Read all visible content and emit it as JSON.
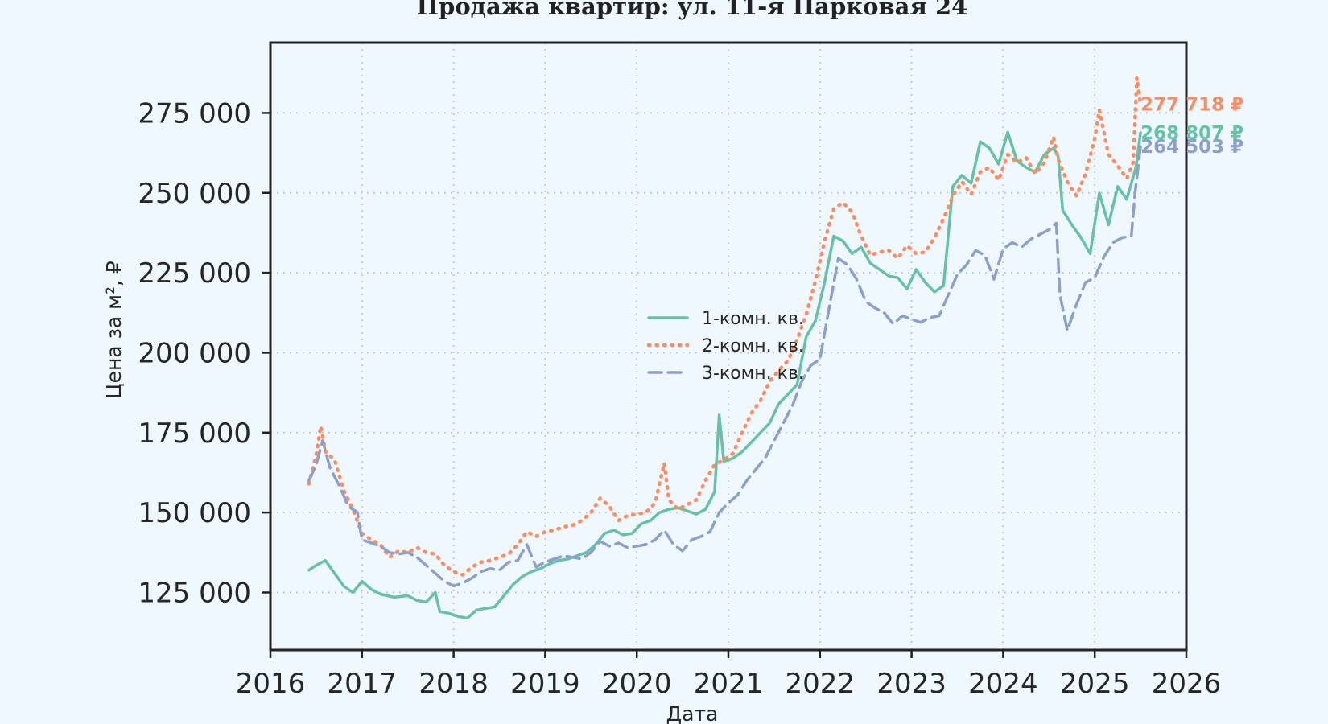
{
  "chart_data": {
    "type": "line",
    "title": "Продажа квартир: ул. 11-я Парковая 24",
    "xlabel": "Дата",
    "ylabel": "Цена за м², ₽",
    "xlim": [
      2016.0,
      2026.0
    ],
    "ylim": [
      107000,
      297000
    ],
    "x_ticks": [
      2016,
      2017,
      2018,
      2019,
      2020,
      2021,
      2022,
      2023,
      2024,
      2025,
      2026
    ],
    "x_tick_labels": [
      "2016",
      "2017",
      "2018",
      "2019",
      "2020",
      "2021",
      "2022",
      "2023",
      "2024",
      "2025",
      "2026"
    ],
    "y_ticks": [
      125000,
      150000,
      175000,
      200000,
      225000,
      250000,
      275000
    ],
    "y_tick_labels": [
      "125 000",
      "150 000",
      "175 000",
      "200 000",
      "225 000",
      "250 000",
      "275 000"
    ],
    "grid": true,
    "legend_position": "center",
    "series": [
      {
        "name": "1-комн. кв.",
        "color": "#66c2a5",
        "style": "solid",
        "end_label": "268 807 ₽",
        "points": [
          [
            2016.42,
            132000
          ],
          [
            2016.5,
            133500
          ],
          [
            2016.6,
            135000
          ],
          [
            2016.7,
            131000
          ],
          [
            2016.8,
            127000
          ],
          [
            2016.9,
            125000
          ],
          [
            2017.0,
            128500
          ],
          [
            2017.1,
            126000
          ],
          [
            2017.2,
            124500
          ],
          [
            2017.35,
            123500
          ],
          [
            2017.5,
            124000
          ],
          [
            2017.6,
            122500
          ],
          [
            2017.7,
            122000
          ],
          [
            2017.8,
            125000
          ],
          [
            2017.85,
            119000
          ],
          [
            2017.95,
            118500
          ],
          [
            2018.05,
            117500
          ],
          [
            2018.15,
            117000
          ],
          [
            2018.25,
            119500
          ],
          [
            2018.35,
            120000
          ],
          [
            2018.45,
            120500
          ],
          [
            2018.55,
            124000
          ],
          [
            2018.65,
            127500
          ],
          [
            2018.75,
            130000
          ],
          [
            2018.85,
            131500
          ],
          [
            2018.95,
            132500
          ],
          [
            2019.05,
            134000
          ],
          [
            2019.15,
            135000
          ],
          [
            2019.25,
            135500
          ],
          [
            2019.35,
            136500
          ],
          [
            2019.45,
            137500
          ],
          [
            2019.55,
            140000
          ],
          [
            2019.65,
            143500
          ],
          [
            2019.75,
            144500
          ],
          [
            2019.85,
            143000
          ],
          [
            2019.95,
            143500
          ],
          [
            2020.05,
            146500
          ],
          [
            2020.15,
            147500
          ],
          [
            2020.25,
            150000
          ],
          [
            2020.35,
            151000
          ],
          [
            2020.45,
            151500
          ],
          [
            2020.55,
            150500
          ],
          [
            2020.65,
            149500
          ],
          [
            2020.75,
            151000
          ],
          [
            2020.85,
            156500
          ],
          [
            2020.9,
            180500
          ],
          [
            2020.95,
            166000
          ],
          [
            2021.05,
            167000
          ],
          [
            2021.15,
            169000
          ],
          [
            2021.25,
            172000
          ],
          [
            2021.35,
            175000
          ],
          [
            2021.45,
            178000
          ],
          [
            2021.55,
            184000
          ],
          [
            2021.65,
            187000
          ],
          [
            2021.75,
            190000
          ],
          [
            2021.85,
            205000
          ],
          [
            2021.95,
            210000
          ],
          [
            2022.05,
            222000
          ],
          [
            2022.15,
            236500
          ],
          [
            2022.25,
            235000
          ],
          [
            2022.35,
            231000
          ],
          [
            2022.45,
            233000
          ],
          [
            2022.55,
            228000
          ],
          [
            2022.65,
            226000
          ],
          [
            2022.75,
            224000
          ],
          [
            2022.85,
            223500
          ],
          [
            2022.95,
            220000
          ],
          [
            2023.05,
            226000
          ],
          [
            2023.15,
            222000
          ],
          [
            2023.25,
            219000
          ],
          [
            2023.35,
            221000
          ],
          [
            2023.45,
            252000
          ],
          [
            2023.55,
            255500
          ],
          [
            2023.65,
            253000
          ],
          [
            2023.75,
            266000
          ],
          [
            2023.85,
            264000
          ],
          [
            2023.95,
            259000
          ],
          [
            2024.05,
            269000
          ],
          [
            2024.15,
            260000
          ],
          [
            2024.25,
            258000
          ],
          [
            2024.35,
            256500
          ],
          [
            2024.45,
            262000
          ],
          [
            2024.55,
            264000
          ],
          [
            2024.6,
            261500
          ],
          [
            2024.65,
            244500
          ],
          [
            2024.75,
            240000
          ],
          [
            2024.85,
            236000
          ],
          [
            2024.95,
            231000
          ],
          [
            2025.05,
            250000
          ],
          [
            2025.15,
            240000
          ],
          [
            2025.25,
            252000
          ],
          [
            2025.35,
            248000
          ],
          [
            2025.45,
            258000
          ],
          [
            2025.5,
            268807
          ]
        ]
      },
      {
        "name": "2-комн. кв.",
        "color": "#fc8d62",
        "style": "dotted",
        "end_label": "277 718 ₽",
        "points": [
          [
            2016.42,
            159000
          ],
          [
            2016.5,
            168000
          ],
          [
            2016.55,
            177000
          ],
          [
            2016.6,
            169000
          ],
          [
            2016.7,
            166500
          ],
          [
            2016.8,
            157000
          ],
          [
            2016.9,
            151000
          ],
          [
            2017.0,
            143500
          ],
          [
            2017.1,
            141500
          ],
          [
            2017.2,
            140000
          ],
          [
            2017.3,
            136000
          ],
          [
            2017.4,
            138000
          ],
          [
            2017.5,
            137500
          ],
          [
            2017.6,
            139000
          ],
          [
            2017.7,
            137500
          ],
          [
            2017.8,
            137000
          ],
          [
            2017.9,
            133500
          ],
          [
            2018.0,
            131500
          ],
          [
            2018.1,
            130500
          ],
          [
            2018.2,
            133000
          ],
          [
            2018.3,
            134500
          ],
          [
            2018.4,
            135000
          ],
          [
            2018.5,
            136000
          ],
          [
            2018.6,
            137000
          ],
          [
            2018.7,
            140000
          ],
          [
            2018.8,
            144000
          ],
          [
            2018.9,
            142500
          ],
          [
            2019.0,
            144000
          ],
          [
            2019.1,
            144500
          ],
          [
            2019.2,
            145500
          ],
          [
            2019.3,
            146000
          ],
          [
            2019.4,
            147500
          ],
          [
            2019.5,
            150000
          ],
          [
            2019.6,
            154500
          ],
          [
            2019.7,
            152000
          ],
          [
            2019.8,
            147500
          ],
          [
            2019.9,
            149000
          ],
          [
            2020.0,
            149500
          ],
          [
            2020.1,
            150000
          ],
          [
            2020.2,
            153000
          ],
          [
            2020.3,
            165500
          ],
          [
            2020.35,
            154000
          ],
          [
            2020.45,
            151000
          ],
          [
            2020.55,
            152500
          ],
          [
            2020.65,
            154000
          ],
          [
            2020.75,
            160000
          ],
          [
            2020.85,
            165000
          ],
          [
            2020.95,
            166500
          ],
          [
            2021.05,
            168500
          ],
          [
            2021.15,
            175000
          ],
          [
            2021.25,
            181000
          ],
          [
            2021.35,
            185000
          ],
          [
            2021.45,
            191000
          ],
          [
            2021.55,
            194500
          ],
          [
            2021.65,
            197500
          ],
          [
            2021.75,
            204000
          ],
          [
            2021.85,
            212000
          ],
          [
            2021.95,
            222500
          ],
          [
            2022.05,
            235000
          ],
          [
            2022.15,
            245000
          ],
          [
            2022.25,
            247000
          ],
          [
            2022.35,
            244000
          ],
          [
            2022.45,
            236500
          ],
          [
            2022.55,
            230500
          ],
          [
            2022.65,
            231500
          ],
          [
            2022.75,
            232000
          ],
          [
            2022.85,
            229500
          ],
          [
            2022.95,
            233500
          ],
          [
            2023.05,
            231000
          ],
          [
            2023.15,
            231500
          ],
          [
            2023.25,
            236000
          ],
          [
            2023.35,
            242000
          ],
          [
            2023.45,
            249000
          ],
          [
            2023.55,
            253500
          ],
          [
            2023.65,
            249500
          ],
          [
            2023.75,
            256500
          ],
          [
            2023.85,
            258000
          ],
          [
            2023.95,
            254000
          ],
          [
            2024.05,
            262000
          ],
          [
            2024.15,
            259500
          ],
          [
            2024.25,
            261000
          ],
          [
            2024.35,
            256000
          ],
          [
            2024.45,
            259500
          ],
          [
            2024.55,
            267500
          ],
          [
            2024.6,
            260500
          ],
          [
            2024.7,
            253500
          ],
          [
            2024.8,
            249000
          ],
          [
            2024.9,
            256000
          ],
          [
            2025.0,
            267000
          ],
          [
            2025.05,
            276000
          ],
          [
            2025.15,
            262000
          ],
          [
            2025.25,
            258500
          ],
          [
            2025.35,
            254500
          ],
          [
            2025.42,
            259500
          ],
          [
            2025.46,
            286000
          ],
          [
            2025.5,
            277718
          ]
        ]
      },
      {
        "name": "3-комн. кв.",
        "color": "#8da0cb",
        "style": "dashed",
        "end_label": "264 503 ₽",
        "points": [
          [
            2016.42,
            160000
          ],
          [
            2016.5,
            165000
          ],
          [
            2016.57,
            172500
          ],
          [
            2016.65,
            164000
          ],
          [
            2016.75,
            158500
          ],
          [
            2016.85,
            152000
          ],
          [
            2016.95,
            150000
          ],
          [
            2017.0,
            141500
          ],
          [
            2017.1,
            140500
          ],
          [
            2017.2,
            139500
          ],
          [
            2017.3,
            137500
          ],
          [
            2017.4,
            137000
          ],
          [
            2017.5,
            137500
          ],
          [
            2017.6,
            136000
          ],
          [
            2017.7,
            133500
          ],
          [
            2017.8,
            131000
          ],
          [
            2017.9,
            128500
          ],
          [
            2018.0,
            127000
          ],
          [
            2018.1,
            128000
          ],
          [
            2018.2,
            129500
          ],
          [
            2018.3,
            131500
          ],
          [
            2018.4,
            132500
          ],
          [
            2018.5,
            132000
          ],
          [
            2018.6,
            134500
          ],
          [
            2018.7,
            135000
          ],
          [
            2018.8,
            140000
          ],
          [
            2018.9,
            133000
          ],
          [
            2019.0,
            134500
          ],
          [
            2019.1,
            135500
          ],
          [
            2019.2,
            136500
          ],
          [
            2019.3,
            136000
          ],
          [
            2019.4,
            135500
          ],
          [
            2019.5,
            137500
          ],
          [
            2019.6,
            141000
          ],
          [
            2019.7,
            139500
          ],
          [
            2019.8,
            140500
          ],
          [
            2019.9,
            139000
          ],
          [
            2020.0,
            139500
          ],
          [
            2020.1,
            140000
          ],
          [
            2020.2,
            141500
          ],
          [
            2020.3,
            144500
          ],
          [
            2020.4,
            140000
          ],
          [
            2020.5,
            138000
          ],
          [
            2020.6,
            141500
          ],
          [
            2020.7,
            142500
          ],
          [
            2020.8,
            144000
          ],
          [
            2020.9,
            150000
          ],
          [
            2021.0,
            153000
          ],
          [
            2021.1,
            155500
          ],
          [
            2021.2,
            160000
          ],
          [
            2021.3,
            163500
          ],
          [
            2021.4,
            167000
          ],
          [
            2021.5,
            172500
          ],
          [
            2021.6,
            178000
          ],
          [
            2021.7,
            183500
          ],
          [
            2021.8,
            191000
          ],
          [
            2021.9,
            196000
          ],
          [
            2022.0,
            198000
          ],
          [
            2022.1,
            214000
          ],
          [
            2022.2,
            229500
          ],
          [
            2022.3,
            227500
          ],
          [
            2022.4,
            223000
          ],
          [
            2022.5,
            216000
          ],
          [
            2022.6,
            214000
          ],
          [
            2022.7,
            212500
          ],
          [
            2022.8,
            209000
          ],
          [
            2022.9,
            211500
          ],
          [
            2023.0,
            210500
          ],
          [
            2023.1,
            209500
          ],
          [
            2023.2,
            211000
          ],
          [
            2023.3,
            211500
          ],
          [
            2023.4,
            218000
          ],
          [
            2023.5,
            224500
          ],
          [
            2023.6,
            227500
          ],
          [
            2023.7,
            232000
          ],
          [
            2023.8,
            230500
          ],
          [
            2023.9,
            223000
          ],
          [
            2024.0,
            232500
          ],
          [
            2024.1,
            234500
          ],
          [
            2024.2,
            233000
          ],
          [
            2024.3,
            235500
          ],
          [
            2024.4,
            237000
          ],
          [
            2024.5,
            238500
          ],
          [
            2024.58,
            240500
          ],
          [
            2024.62,
            218000
          ],
          [
            2024.7,
            207000
          ],
          [
            2024.8,
            215000
          ],
          [
            2024.9,
            222000
          ],
          [
            2025.0,
            223500
          ],
          [
            2025.1,
            230000
          ],
          [
            2025.2,
            234500
          ],
          [
            2025.3,
            236000
          ],
          [
            2025.4,
            236500
          ],
          [
            2025.44,
            250000
          ],
          [
            2025.5,
            264503
          ]
        ]
      }
    ]
  }
}
